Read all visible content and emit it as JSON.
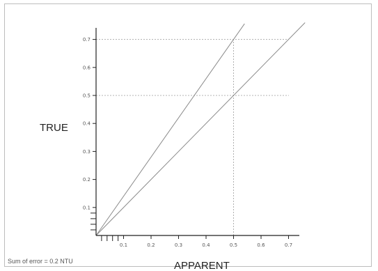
{
  "chart_data": {
    "type": "line",
    "title": "",
    "xlabel": "APPARENT",
    "ylabel": "TRUE",
    "xlim": [
      0,
      0.75
    ],
    "ylim": [
      0,
      0.75
    ],
    "x_ticks": [
      "0.1",
      "0.2",
      "0.3",
      "0.4",
      "0.5",
      "0.6",
      "0.7"
    ],
    "y_ticks": [
      "0.1",
      "0.2",
      "0.3",
      "0.4",
      "0.5",
      "0.6",
      "0.7"
    ],
    "x_ticks_numeric": [
      0.1,
      0.2,
      0.3,
      0.4,
      0.5,
      0.6,
      0.7
    ],
    "y_ticks_numeric": [
      0.1,
      0.2,
      0.3,
      0.4,
      0.5,
      0.6,
      0.7
    ],
    "series": [
      {
        "x": [
          0,
          0.54
        ],
        "y": [
          0,
          0.756
        ]
      },
      {
        "x": [
          0,
          0.76
        ],
        "y": [
          0,
          0.76
        ]
      }
    ],
    "reference_lines": [
      {
        "orientation": "vertical",
        "value": 0.5
      },
      {
        "orientation": "horizontal",
        "value": 0.5
      },
      {
        "orientation": "horizontal",
        "value": 0.7
      }
    ],
    "annotation": "Sum of error = 0.2 NTU",
    "grid": false
  },
  "colors": {
    "axis": "#222222",
    "series": "#8a8a8a",
    "reference": "#9a9a9a"
  }
}
